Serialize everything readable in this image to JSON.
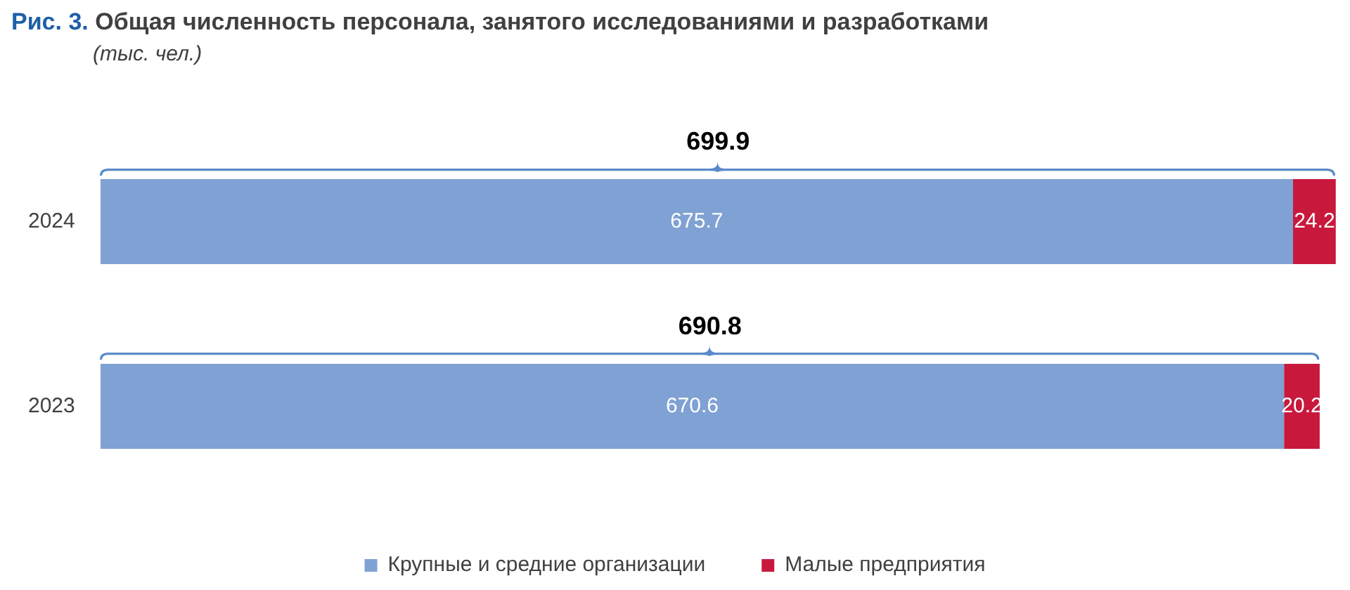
{
  "chart_data": {
    "type": "bar",
    "orientation": "horizontal",
    "stacked": true,
    "title": "Рис. 3. Общая численность персонала, занятого исследованиями и разработками",
    "subtitle": "(тыс. чел.)",
    "categories": [
      "2024",
      "2023"
    ],
    "series": [
      {
        "name": "Крупные и средние организации",
        "color": "#7fa1d3",
        "values": [
          675.7,
          670.6
        ]
      },
      {
        "name": "Малые предприятия",
        "color": "#c8193c",
        "values": [
          24.2,
          20.2
        ]
      }
    ],
    "xlim": [
      0,
      700
    ],
    "data_labels": true,
    "totals": [
      "699.9",
      "690.8"
    ],
    "legend": "bottom",
    "tick_labels": "y"
  }
}
